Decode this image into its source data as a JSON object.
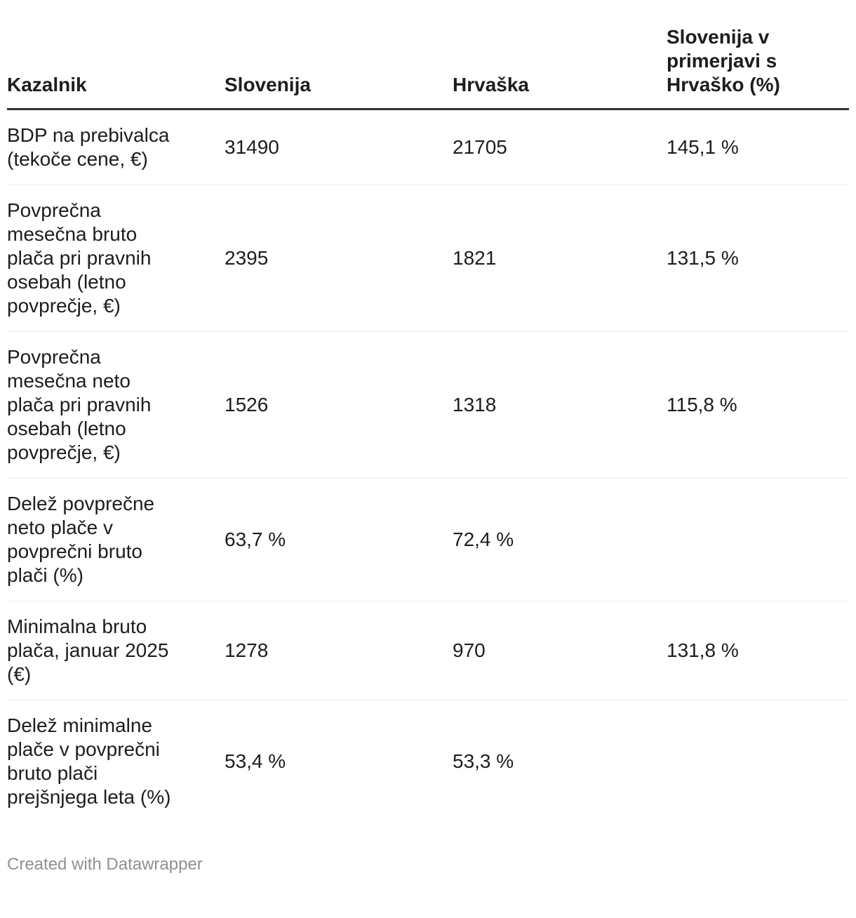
{
  "chart_data": {
    "type": "table",
    "columns": [
      "Kazalnik",
      "Slovenija",
      "Hrvaška",
      "Slovenija v primerjavi s Hrvaško (%)"
    ],
    "rows": [
      {
        "kazalnik": "BDP na prebivalca (tekoče cene, €)",
        "slovenija": "31490",
        "hrvaska": "21705",
        "slovenija_v_primerjavi_s_hrvasko": "145,1 %"
      },
      {
        "kazalnik": "Povprečna mesečna bruto plača pri pravnih osebah (letno povprečje, €)",
        "slovenija": "2395",
        "hrvaska": "1821",
        "slovenija_v_primerjavi_s_hrvasko": "131,5 %"
      },
      {
        "kazalnik": "Povprečna mesečna neto plača pri pravnih osebah (letno povprečje, €)",
        "slovenija": "1526",
        "hrvaska": "1318",
        "slovenija_v_primerjavi_s_hrvasko": "115,8 %"
      },
      {
        "kazalnik": "Delež povprečne neto plače v povprečni bruto plači (%)",
        "slovenija": "63,7 %",
        "hrvaska": "72,4 %",
        "slovenija_v_primerjavi_s_hrvasko": ""
      },
      {
        "kazalnik": "Minimalna bruto plača, januar 2025 (€)",
        "slovenija": "1278",
        "hrvaska": "970",
        "slovenija_v_primerjavi_s_hrvasko": "131,8 %"
      },
      {
        "kazalnik": "Delež minimalne plače v povprečni bruto plači prejšnjega leta (%)",
        "slovenija": "53,4 %",
        "hrvaska": "53,3 %",
        "slovenija_v_primerjavi_s_hrvasko": ""
      }
    ],
    "title": "",
    "legend_position": "none",
    "grid": "horizontal-dividers-only"
  },
  "display": {
    "headers": [
      "Kazalnik",
      "Slovenija",
      "Hrvaška",
      "Slovenija v\nprimerjavi s\nHrvaško (%)"
    ],
    "rows": [
      [
        "BDP na prebivalca\n(tekoče cene, €)",
        "31490",
        "21705",
        "145,1 %"
      ],
      [
        "Povprečna\nmesečna bruto\nplača pri pravnih\nosebah (letno\npovprečje, €)",
        "2395",
        "1821",
        "131,5 %"
      ],
      [
        "Povprečna\nmesečna neto\nplača pri pravnih\nosebah (letno\npovprečje, €)",
        "1526",
        "1318",
        "115,8 %"
      ],
      [
        "Delež povprečne\nneto plače v\npovprečni bruto\nplači (%)",
        "63,7 %",
        "72,4 %",
        ""
      ],
      [
        "Minimalna bruto\nplača, januar 2025\n(€)",
        "1278",
        "970",
        "131,8 %"
      ],
      [
        "Delež minimalne\nplače v povprečni\nbruto plači\nprejšnjega leta (%)",
        "53,4 %",
        "53,3 %",
        ""
      ]
    ]
  },
  "footer": {
    "credit": "Created with Datawrapper"
  },
  "colors": {
    "text": "#1d1d1d",
    "header_border": "#333333",
    "row_divider": "#e9e9e9",
    "credit_text": "#909090",
    "background": "#ffffff"
  }
}
